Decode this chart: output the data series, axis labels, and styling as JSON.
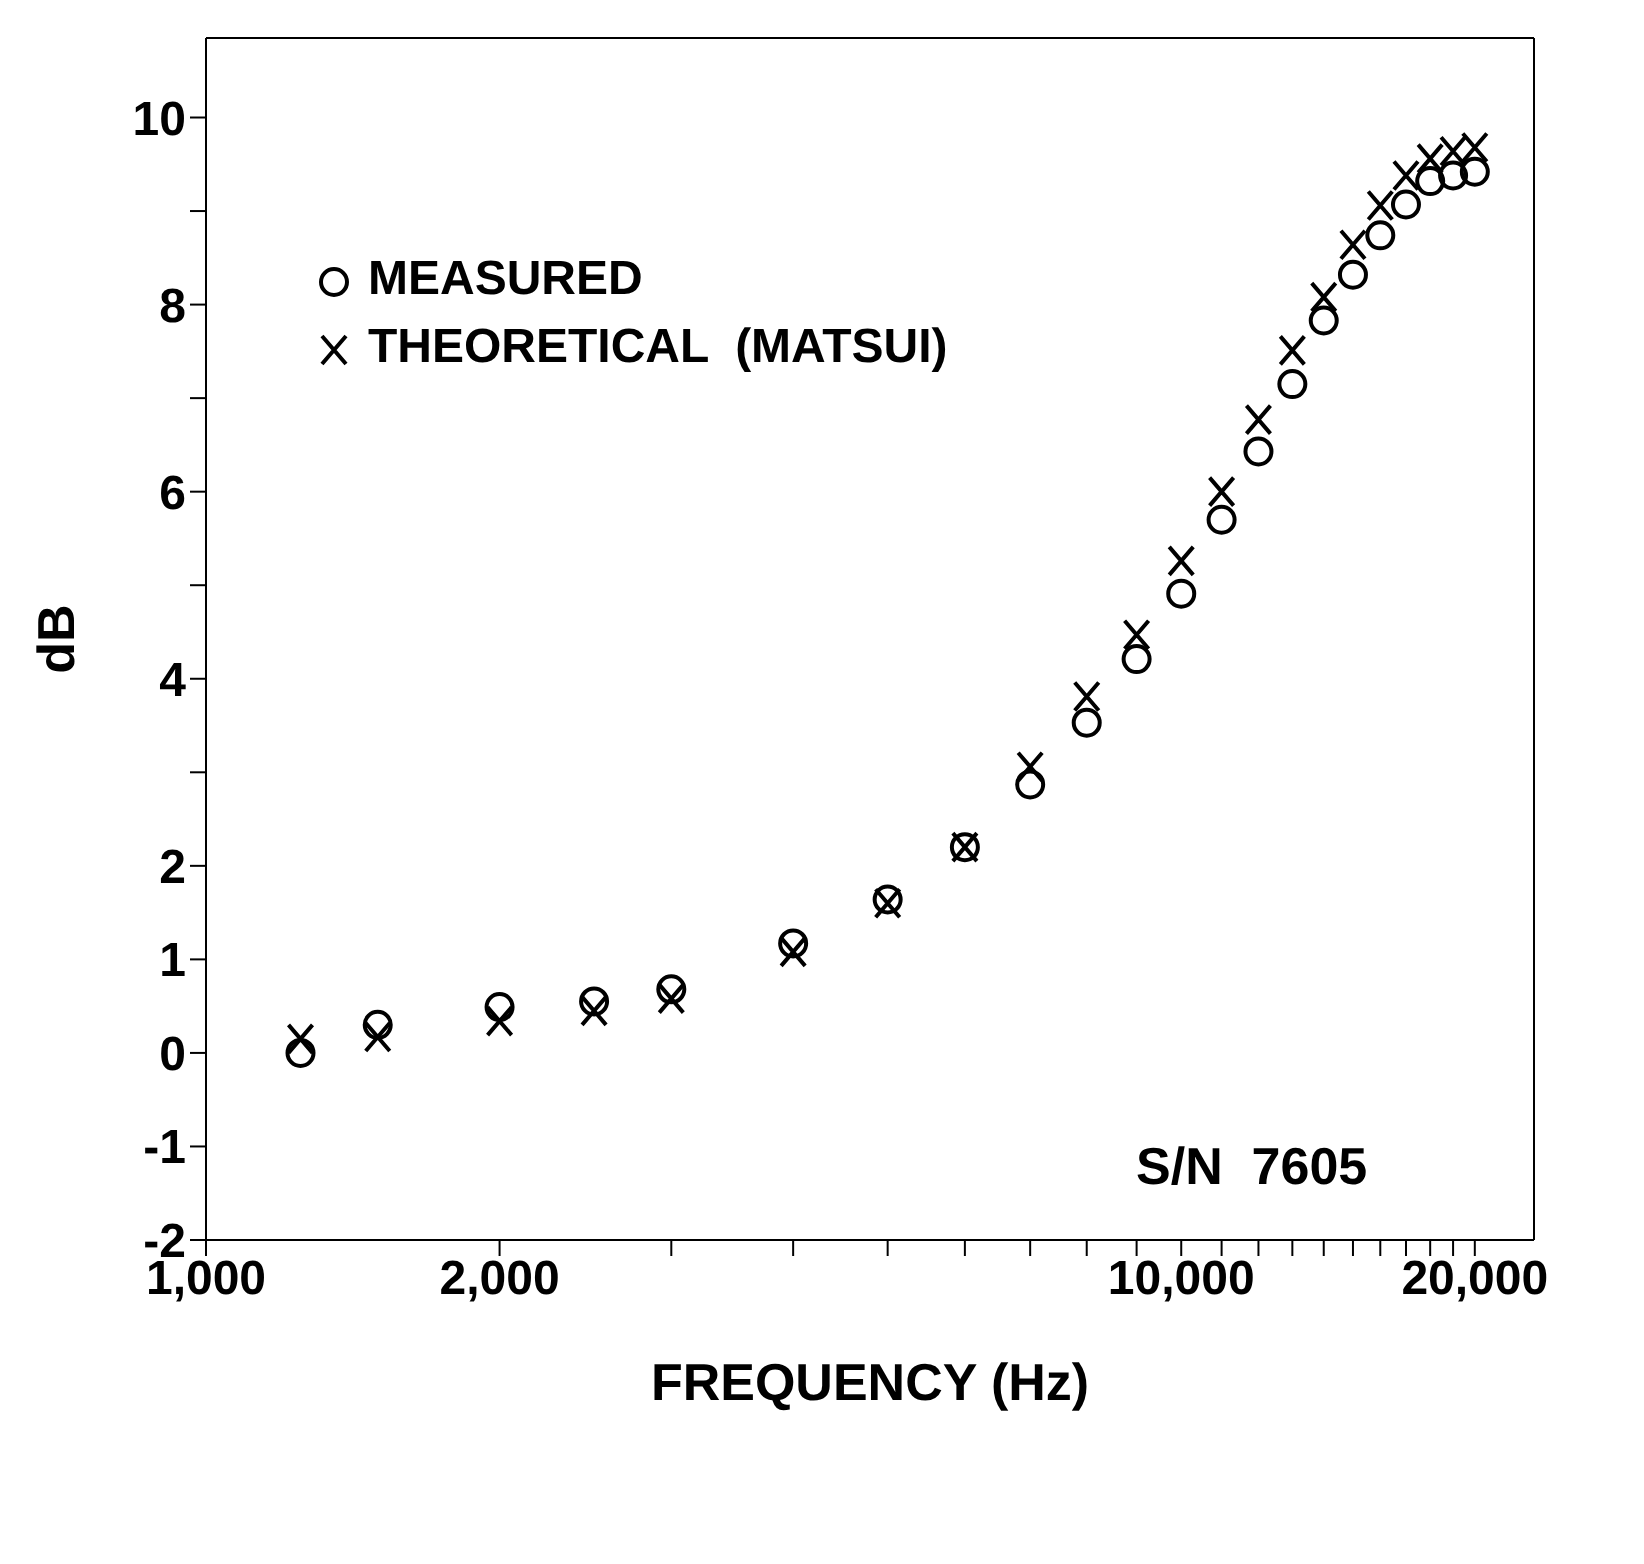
{
  "chart_data": {
    "type": "scatter",
    "xlabel": "FREQUENCY  (Hz)",
    "ylabel": "dB",
    "x": [
      1250,
      1500,
      2000,
      2500,
      3000,
      4000,
      5000,
      6000,
      7000,
      8000,
      9000,
      10000,
      11000,
      12000,
      13000,
      14000,
      15000,
      16000,
      17000,
      18000,
      19000,
      20000
    ],
    "series": [
      {
        "name": "MEASURED",
        "color": "#000000",
        "marker": "circle",
        "values": [
          0.0,
          0.3,
          0.49,
          0.55,
          0.68,
          1.17,
          1.64,
          2.2,
          2.87,
          3.53,
          4.21,
          4.91,
          5.7,
          6.43,
          7.15,
          7.83,
          8.32,
          8.74,
          9.07,
          9.32,
          9.38,
          9.42
        ]
      },
      {
        "name": "THEORETICAL  (MATSUI)",
        "color": "#000000",
        "marker": "cross",
        "values": [
          0.15,
          0.17,
          0.34,
          0.45,
          0.58,
          1.08,
          1.6,
          2.2,
          3.06,
          3.81,
          4.47,
          5.26,
          6.0,
          6.77,
          7.51,
          8.08,
          8.64,
          9.06,
          9.38,
          9.56,
          9.64,
          9.68
        ]
      }
    ],
    "log": "x",
    "xlim": [
      1000,
      23000
    ],
    "xticks": [
      {
        "value": 1000,
        "label": "1,000"
      },
      {
        "value": 2000,
        "label": "2,000"
      },
      {
        "value": 3000,
        "label": null
      },
      {
        "value": 4000,
        "label": null
      },
      {
        "value": 5000,
        "label": null
      },
      {
        "value": 6000,
        "label": null
      },
      {
        "value": 7000,
        "label": null
      },
      {
        "value": 8000,
        "label": null
      },
      {
        "value": 9000,
        "label": null
      },
      {
        "value": 10000,
        "label": "10,000"
      },
      {
        "value": 11000,
        "label": null
      },
      {
        "value": 12000,
        "label": null
      },
      {
        "value": 13000,
        "label": null
      },
      {
        "value": 14000,
        "label": null
      },
      {
        "value": 15000,
        "label": null
      },
      {
        "value": 16000,
        "label": null
      },
      {
        "value": 17000,
        "label": null
      },
      {
        "value": 18000,
        "label": null
      },
      {
        "value": 19000,
        "label": null
      },
      {
        "value": 20000,
        "label": "20,000"
      }
    ],
    "ylim": [
      -2,
      10.85
    ],
    "yticks": [
      -2,
      -1,
      0,
      1,
      2,
      {
        "value": 3,
        "label": null
      },
      4,
      {
        "value": 5,
        "label": null
      },
      6,
      {
        "value": 7,
        "label": null
      },
      8,
      {
        "value": 9,
        "label": null
      },
      10
    ],
    "grid": false,
    "legend": "top left",
    "annotations": [
      "S/N  7605"
    ]
  }
}
